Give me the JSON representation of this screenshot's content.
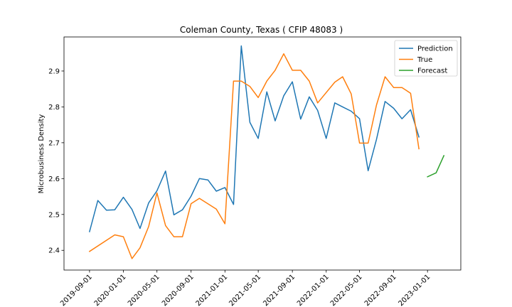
{
  "chart_data": {
    "type": "line",
    "title": "Coleman County, Texas ( CFIP 48083 )",
    "xlabel": "",
    "ylabel": "Microbusiness Density",
    "x_range": [
      "2019-06-01",
      "2023-05-01"
    ],
    "ylim": [
      2.345,
      2.995
    ],
    "y_ticks": [
      2.4,
      2.5,
      2.6,
      2.7,
      2.8,
      2.9
    ],
    "y_tick_labels": [
      "2.4",
      "2.5",
      "2.6",
      "2.7",
      "2.8",
      "2.9"
    ],
    "x_ticks": [
      "2019-09-01",
      "2020-01-01",
      "2020-05-01",
      "2020-09-01",
      "2021-01-01",
      "2021-05-01",
      "2021-09-01",
      "2022-01-01",
      "2022-05-01",
      "2022-09-01",
      "2023-01-01"
    ],
    "grid": false,
    "legend": "top-right",
    "series": [
      {
        "name": "Prediction",
        "color": "#1f77b4",
        "points": [
          [
            "2019-09-01",
            2.452
          ],
          [
            "2019-10-01",
            2.539
          ],
          [
            "2019-11-01",
            2.512
          ],
          [
            "2019-12-01",
            2.513
          ],
          [
            "2020-01-01",
            2.548
          ],
          [
            "2020-02-01",
            2.514
          ],
          [
            "2020-03-01",
            2.461
          ],
          [
            "2020-04-01",
            2.532
          ],
          [
            "2020-05-01",
            2.566
          ],
          [
            "2020-06-01",
            2.621
          ],
          [
            "2020-07-01",
            2.499
          ],
          [
            "2020-08-01",
            2.513
          ],
          [
            "2020-09-01",
            2.551
          ],
          [
            "2020-10-01",
            2.6
          ],
          [
            "2020-11-01",
            2.596
          ],
          [
            "2020-12-01",
            2.565
          ],
          [
            "2021-01-01",
            2.575
          ],
          [
            "2021-02-01",
            2.528
          ],
          [
            "2021-03-01",
            2.97
          ],
          [
            "2021-04-01",
            2.757
          ],
          [
            "2021-05-01",
            2.712
          ],
          [
            "2021-06-01",
            2.842
          ],
          [
            "2021-07-01",
            2.761
          ],
          [
            "2021-08-01",
            2.831
          ],
          [
            "2021-09-01",
            2.87
          ],
          [
            "2021-10-01",
            2.766
          ],
          [
            "2021-11-01",
            2.828
          ],
          [
            "2021-12-01",
            2.79
          ],
          [
            "2022-01-01",
            2.712
          ],
          [
            "2022-02-01",
            2.811
          ],
          [
            "2022-03-01",
            2.8
          ],
          [
            "2022-04-01",
            2.788
          ],
          [
            "2022-05-01",
            2.767
          ],
          [
            "2022-06-01",
            2.622
          ],
          [
            "2022-07-01",
            2.709
          ],
          [
            "2022-08-01",
            2.815
          ],
          [
            "2022-09-01",
            2.796
          ],
          [
            "2022-10-01",
            2.767
          ],
          [
            "2022-11-01",
            2.792
          ],
          [
            "2022-12-01",
            2.716
          ]
        ]
      },
      {
        "name": "True",
        "color": "#ff7f0e",
        "points": [
          [
            "2019-09-01",
            2.397
          ],
          [
            "2019-12-01",
            2.443
          ],
          [
            "2020-01-01",
            2.438
          ],
          [
            "2020-02-01",
            2.377
          ],
          [
            "2020-03-01",
            2.407
          ],
          [
            "2020-04-01",
            2.466
          ],
          [
            "2020-05-01",
            2.56
          ],
          [
            "2020-06-01",
            2.469
          ],
          [
            "2020-07-01",
            2.438
          ],
          [
            "2020-08-01",
            2.438
          ],
          [
            "2020-09-01",
            2.53
          ],
          [
            "2020-10-01",
            2.545
          ],
          [
            "2020-12-01",
            2.515
          ],
          [
            "2021-01-01",
            2.474
          ],
          [
            "2021-02-01",
            2.872
          ],
          [
            "2021-03-01",
            2.872
          ],
          [
            "2021-04-01",
            2.857
          ],
          [
            "2021-05-01",
            2.826
          ],
          [
            "2021-06-01",
            2.872
          ],
          [
            "2021-07-01",
            2.902
          ],
          [
            "2021-08-01",
            2.948
          ],
          [
            "2021-09-01",
            2.902
          ],
          [
            "2021-10-01",
            2.902
          ],
          [
            "2021-11-01",
            2.872
          ],
          [
            "2021-12-01",
            2.811
          ],
          [
            "2022-02-01",
            2.869
          ],
          [
            "2022-03-01",
            2.884
          ],
          [
            "2022-04-01",
            2.836
          ],
          [
            "2022-05-01",
            2.699
          ],
          [
            "2022-06-01",
            2.699
          ],
          [
            "2022-07-01",
            2.805
          ],
          [
            "2022-08-01",
            2.884
          ],
          [
            "2022-09-01",
            2.854
          ],
          [
            "2022-10-01",
            2.854
          ],
          [
            "2022-11-01",
            2.838
          ],
          [
            "2022-12-01",
            2.683
          ]
        ]
      },
      {
        "name": "Forecast",
        "color": "#2ca02c",
        "points": [
          [
            "2023-01-01",
            2.605
          ],
          [
            "2023-02-01",
            2.616
          ],
          [
            "2023-03-01",
            2.664
          ]
        ]
      }
    ]
  }
}
